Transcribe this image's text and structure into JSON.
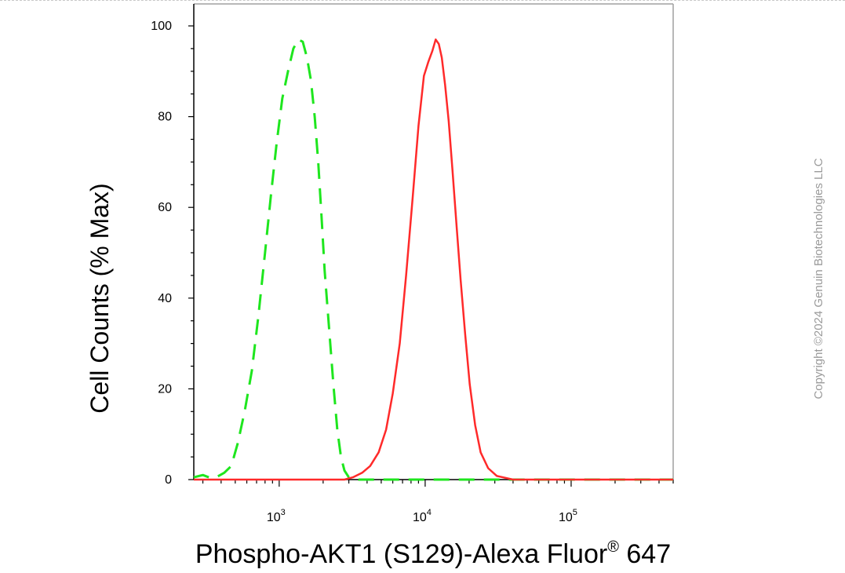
{
  "chart_data": {
    "type": "line",
    "title": "",
    "xlabel": "Phospho-AKT1 (S129)-Alexa Fluor",
    "xlabel_superscript": "®",
    "xlabel_suffix": " 647",
    "ylabel": "Cell Counts (% Max)",
    "x_scale": "log",
    "xlim": [
      260,
      500000
    ],
    "ylim": [
      0,
      105
    ],
    "x_ticks": [
      {
        "base": "10",
        "exp": "3",
        "value": 1000
      },
      {
        "base": "10",
        "exp": "4",
        "value": 10000
      },
      {
        "base": "10",
        "exp": "5",
        "value": 100000
      }
    ],
    "y_ticks": [
      0,
      20,
      40,
      60,
      80,
      100
    ],
    "y_tick_labels": [
      "0",
      "20",
      "40",
      "60",
      "80",
      "100"
    ],
    "grid": false,
    "series": [
      {
        "color": "#1ee61e",
        "style": "dashed",
        "x": [
          260,
          300,
          330,
          370,
          420,
          470,
          520,
          580,
          650,
          720,
          800,
          880,
          960,
          1050,
          1150,
          1250,
          1350,
          1450,
          1550,
          1650,
          1750,
          1850,
          1950,
          2050,
          2200,
          2350,
          2500,
          2650,
          2800,
          3000,
          3500,
          5000,
          10000,
          50000,
          500000
        ],
        "y": [
          0.5,
          1,
          0.5,
          0.5,
          1.5,
          3,
          8,
          15,
          24,
          36,
          50,
          63,
          74,
          84,
          90,
          95,
          97,
          96.5,
          93,
          88,
          80,
          70,
          58,
          46,
          33,
          21,
          11,
          5,
          2,
          0.5,
          0,
          0,
          0,
          0,
          0
        ]
      },
      {
        "color": "#ff2a2a",
        "style": "solid",
        "x": [
          260,
          2800,
          3200,
          3700,
          4200,
          4800,
          5400,
          6000,
          6700,
          7400,
          8200,
          9000,
          9800,
          10500,
          11200,
          11800,
          12400,
          13000,
          13700,
          14500,
          15400,
          16400,
          17500,
          18800,
          20200,
          22000,
          24000,
          27000,
          31000,
          40000,
          100000,
          500000
        ],
        "y": [
          0,
          0,
          0.5,
          1.5,
          3,
          6,
          11,
          19,
          30,
          45,
          62,
          78,
          89,
          92,
          94.5,
          97,
          96,
          93,
          87,
          79,
          68,
          56,
          44,
          32,
          21,
          12,
          6,
          2.5,
          0.8,
          0,
          0,
          0
        ]
      }
    ]
  },
  "watermark": "Copyright ©2024 Genuin Biotechnologies LLC",
  "colors": {
    "axis": "#000000",
    "frame": "#a0a0a0",
    "watermark": "#9a9a9a"
  }
}
